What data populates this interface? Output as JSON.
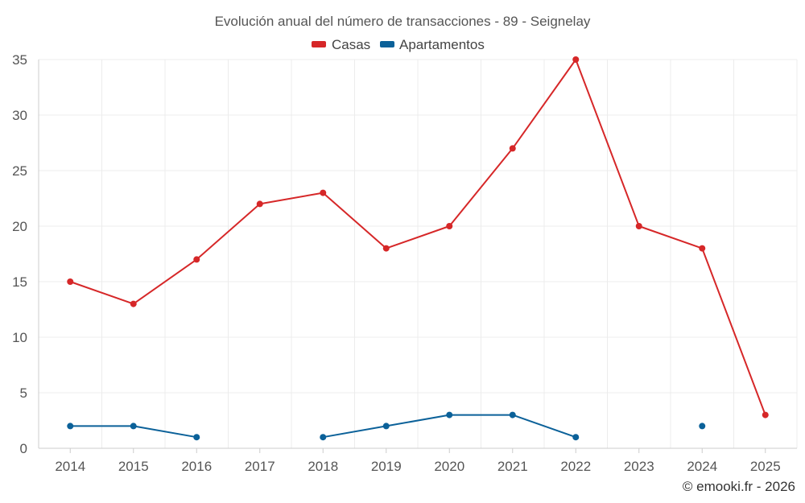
{
  "chart_data": {
    "type": "line",
    "title": "Evolución anual del número de transacciones - 89 - Seignelay",
    "categories": [
      "2014",
      "2015",
      "2016",
      "2017",
      "2018",
      "2019",
      "2020",
      "2021",
      "2022",
      "2023",
      "2024",
      "2025"
    ],
    "series": [
      {
        "name": "Casas",
        "color": "#d62728",
        "values": [
          15,
          13,
          17,
          22,
          23,
          18,
          20,
          27,
          35,
          20,
          18,
          3
        ]
      },
      {
        "name": "Apartamentos",
        "color": "#0b6199",
        "values": [
          2,
          2,
          1,
          null,
          1,
          2,
          3,
          3,
          1,
          null,
          2,
          null
        ]
      }
    ],
    "ylim": [
      0,
      35
    ],
    "yticks": [
      0,
      5,
      10,
      15,
      20,
      25,
      30,
      35
    ],
    "xlabel": "",
    "ylabel": "",
    "grid": true,
    "legend": "top-center"
  },
  "credit": "© emooki.fr - 2026"
}
